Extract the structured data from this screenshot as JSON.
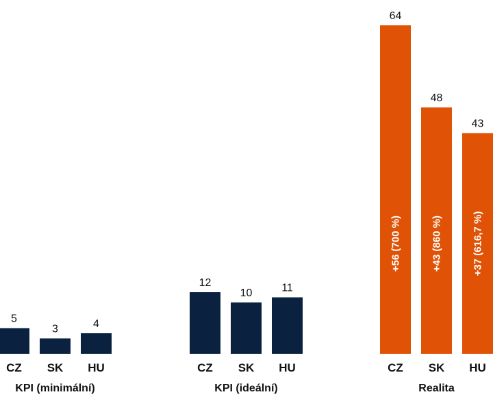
{
  "chart_data": {
    "type": "bar",
    "title": "",
    "xlabel": "",
    "ylabel": "",
    "ylim": [
      0,
      64
    ],
    "grid": false,
    "legend": "none",
    "colors": {
      "kpi": "#0a2140",
      "reality": "#e05206",
      "text": "#111111",
      "inner_text": "#ffffff"
    },
    "groups": [
      {
        "label": "KPI (minimální)",
        "color_key": "kpi",
        "categories": [
          "CZ",
          "SK",
          "HU"
        ],
        "values": [
          5,
          3,
          4
        ],
        "value_labels": [
          "5",
          "3",
          "4"
        ],
        "inner_labels": []
      },
      {
        "label": "KPI (ideální)",
        "color_key": "kpi",
        "categories": [
          "CZ",
          "SK",
          "HU"
        ],
        "values": [
          12,
          10,
          11
        ],
        "value_labels": [
          "12",
          "10",
          "11"
        ],
        "inner_labels": []
      },
      {
        "label": "Realita",
        "color_key": "reality",
        "categories": [
          "CZ",
          "SK",
          "HU"
        ],
        "values": [
          64,
          48,
          43
        ],
        "value_labels": [
          "64",
          "48",
          "43"
        ],
        "inner_labels": [
          "+56 (700 %)",
          "+43 (860 %)",
          "+37 (616,7 %)"
        ]
      }
    ]
  }
}
